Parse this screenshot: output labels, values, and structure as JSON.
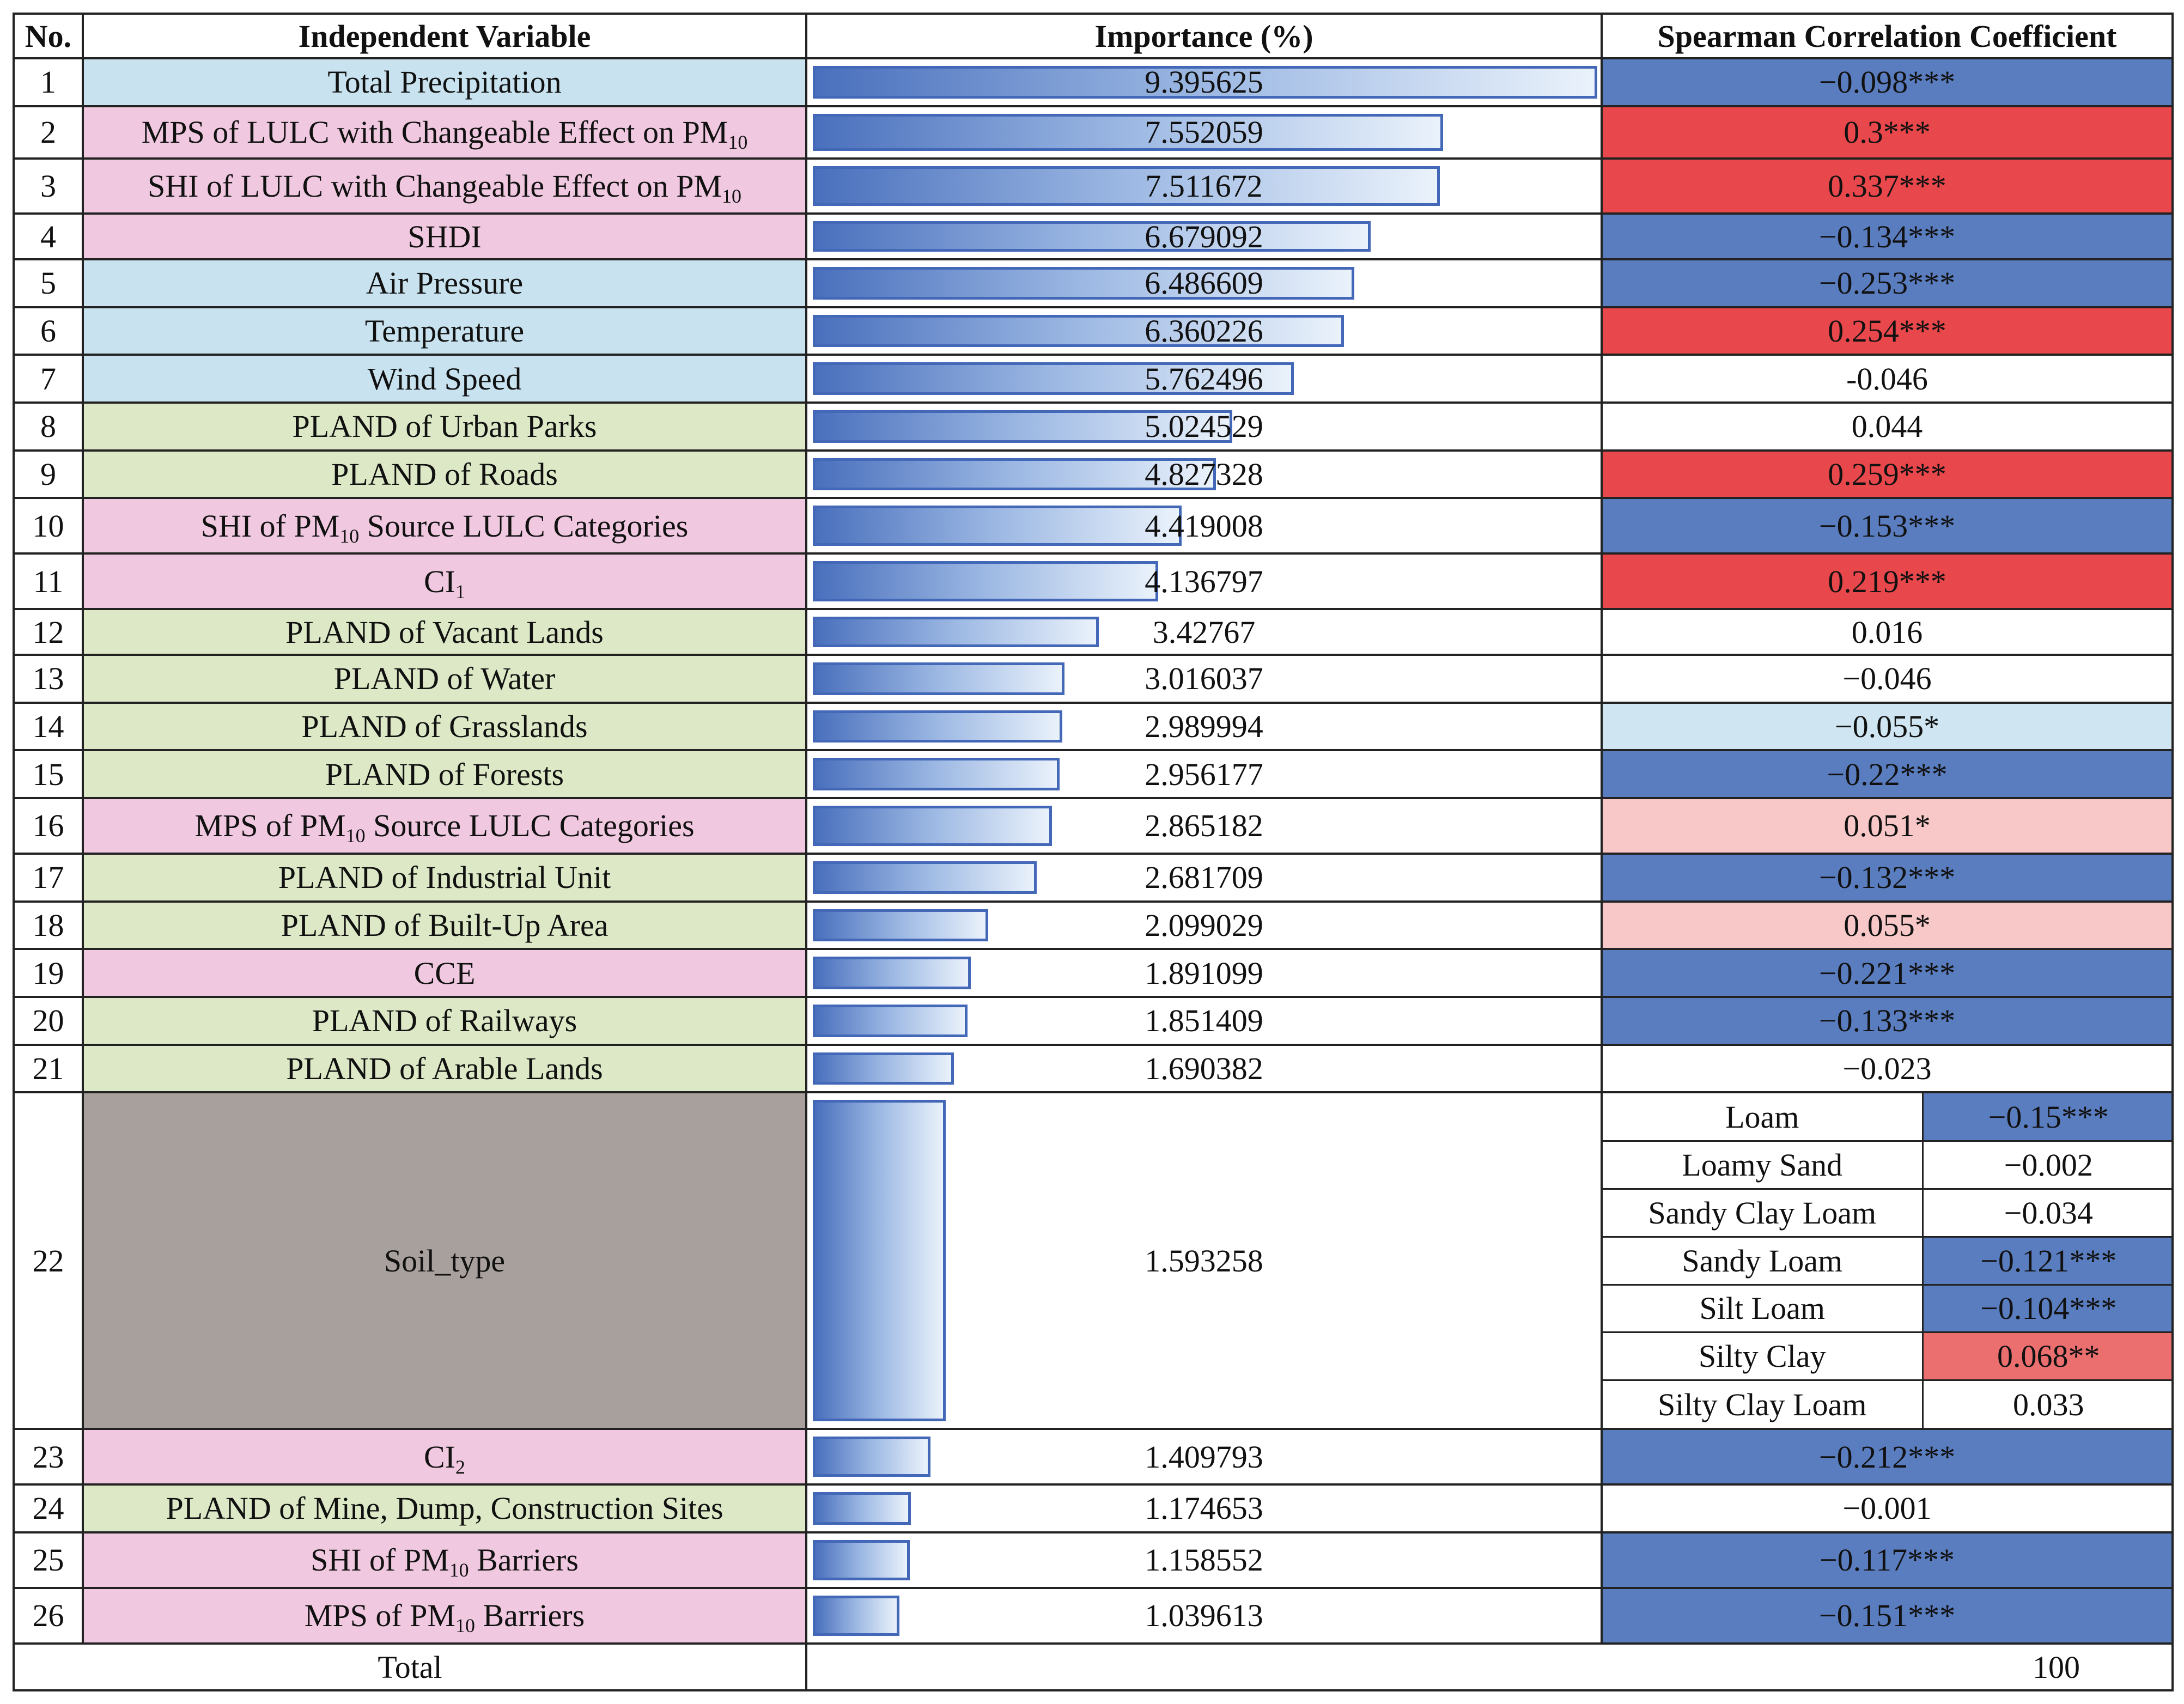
{
  "headers": {
    "no": "No.",
    "variable": "Independent Variable",
    "importance": "Importance (%)",
    "spearman": "Spearman Correlation Coefficient"
  },
  "colors": {
    "climate_bg": "#c8e3ef",
    "landscape_bg": "#f0c9e0",
    "landuse_bg": "#dde9c6",
    "soil_bg": "#a8a09c",
    "sig_negative": "#5a7dbf",
    "sig_positive": "#e8474b",
    "weak_negative": "#cfe6f2",
    "weak_positive": "#f8c8c8",
    "moderate_positive": "#ec6f70",
    "none": "#ffffff"
  },
  "rows": [
    {
      "no": "1",
      "pre": "Total Precipitation",
      "sub": "",
      "post": "",
      "group": "climate",
      "importance": "9.395625",
      "imp_value": 9.395625,
      "spearman": "−0.098***",
      "sp_color": "sig_negative"
    },
    {
      "no": "2",
      "pre": "MPS of LULC with Changeable Effect on PM",
      "sub": "10",
      "post": "",
      "group": "landscape",
      "importance": "7.552059",
      "imp_value": 7.552059,
      "spearman": "0.3***",
      "sp_color": "sig_positive"
    },
    {
      "no": "3",
      "pre": "SHI of LULC with Changeable Effect on PM",
      "sub": "10",
      "post": "",
      "group": "landscape",
      "importance": "7.511672",
      "imp_value": 7.511672,
      "spearman": "0.337***",
      "sp_color": "sig_positive"
    },
    {
      "no": "4",
      "pre": "SHDI",
      "sub": "",
      "post": "",
      "group": "landscape",
      "importance": "6.679092",
      "imp_value": 6.679092,
      "spearman": "−0.134***",
      "sp_color": "sig_negative"
    },
    {
      "no": "5",
      "pre": "Air Pressure",
      "sub": "",
      "post": "",
      "group": "climate",
      "importance": "6.486609",
      "imp_value": 6.486609,
      "spearman": "−0.253***",
      "sp_color": "sig_negative"
    },
    {
      "no": "6",
      "pre": "Temperature",
      "sub": "",
      "post": "",
      "group": "climate",
      "importance": "6.360226",
      "imp_value": 6.360226,
      "spearman": "0.254***",
      "sp_color": "sig_positive"
    },
    {
      "no": "7",
      "pre": "Wind Speed",
      "sub": "",
      "post": "",
      "group": "climate",
      "importance": "5.762496",
      "imp_value": 5.762496,
      "spearman": "-0.046",
      "sp_color": "none"
    },
    {
      "no": "8",
      "pre": "PLAND of Urban Parks",
      "sub": "",
      "post": "",
      "group": "landuse",
      "importance": "5.024529",
      "imp_value": 5.024529,
      "spearman": "0.044",
      "sp_color": "none"
    },
    {
      "no": "9",
      "pre": "PLAND of Roads",
      "sub": "",
      "post": "",
      "group": "landuse",
      "importance": "4.827328",
      "imp_value": 4.827328,
      "spearman": "0.259***",
      "sp_color": "sig_positive"
    },
    {
      "no": "10",
      "pre": "SHI of PM",
      "sub": "10",
      "post": " Source LULC Categories",
      "group": "landscape",
      "importance": "4.419008",
      "imp_value": 4.419008,
      "spearman": "−0.153***",
      "sp_color": "sig_negative"
    },
    {
      "no": "11",
      "pre": "CI",
      "sub": "1",
      "post": "",
      "group": "landscape",
      "importance": "4.136797",
      "imp_value": 4.136797,
      "spearman": "0.219***",
      "sp_color": "sig_positive"
    },
    {
      "no": "12",
      "pre": "PLAND of Vacant Lands",
      "sub": "",
      "post": "",
      "group": "landuse",
      "importance": "3.42767",
      "imp_value": 3.42767,
      "spearman": "0.016",
      "sp_color": "none"
    },
    {
      "no": "13",
      "pre": "PLAND of Water",
      "sub": "",
      "post": "",
      "group": "landuse",
      "importance": "3.016037",
      "imp_value": 3.016037,
      "spearman": "−0.046",
      "sp_color": "none"
    },
    {
      "no": "14",
      "pre": "PLAND of Grasslands",
      "sub": "",
      "post": "",
      "group": "landuse",
      "importance": "2.989994",
      "imp_value": 2.989994,
      "spearman": "−0.055*",
      "sp_color": "weak_negative"
    },
    {
      "no": "15",
      "pre": "PLAND of Forests",
      "sub": "",
      "post": "",
      "group": "landuse",
      "importance": "2.956177",
      "imp_value": 2.956177,
      "spearman": "−0.22***",
      "sp_color": "sig_negative"
    },
    {
      "no": "16",
      "pre": "MPS of PM",
      "sub": "10",
      "post": " Source LULC Categories",
      "group": "landscape",
      "importance": "2.865182",
      "imp_value": 2.865182,
      "spearman": "0.051*",
      "sp_color": "weak_positive"
    },
    {
      "no": "17",
      "pre": "PLAND of Industrial Unit",
      "sub": "",
      "post": "",
      "group": "landuse",
      "importance": "2.681709",
      "imp_value": 2.681709,
      "spearman": "−0.132***",
      "sp_color": "sig_negative"
    },
    {
      "no": "18",
      "pre": "PLAND of Built-Up Area",
      "sub": "",
      "post": "",
      "group": "landuse",
      "importance": "2.099029",
      "imp_value": 2.099029,
      "spearman": "0.055*",
      "sp_color": "weak_positive"
    },
    {
      "no": "19",
      "pre": "CCE",
      "sub": "",
      "post": "",
      "group": "landscape",
      "importance": "1.891099",
      "imp_value": 1.891099,
      "spearman": "−0.221***",
      "sp_color": "sig_negative"
    },
    {
      "no": "20",
      "pre": "PLAND of Railways",
      "sub": "",
      "post": "",
      "group": "landuse",
      "importance": "1.851409",
      "imp_value": 1.851409,
      "spearman": "−0.133***",
      "sp_color": "sig_negative"
    },
    {
      "no": "21",
      "pre": "PLAND of Arable Lands",
      "sub": "",
      "post": "",
      "group": "landuse",
      "importance": "1.690382",
      "imp_value": 1.690382,
      "spearman": "−0.023",
      "sp_color": "none"
    },
    {
      "no": "22",
      "pre": "Soil_type",
      "sub": "",
      "post": "",
      "group": "soil",
      "importance": "1.593258",
      "imp_value": 1.593258,
      "soil_types": [
        {
          "name": "Loam",
          "value": "−0.15***",
          "color": "sig_negative"
        },
        {
          "name": "Loamy Sand",
          "value": "−0.002",
          "color": "none"
        },
        {
          "name": "Sandy Clay Loam",
          "value": "−0.034",
          "color": "none"
        },
        {
          "name": "Sandy Loam",
          "value": "−0.121***",
          "color": "sig_negative"
        },
        {
          "name": "Silt Loam",
          "value": "−0.104***",
          "color": "sig_negative"
        },
        {
          "name": "Silty Clay",
          "value": "0.068**",
          "color": "moderate_positive"
        },
        {
          "name": "Silty Clay Loam",
          "value": "0.033",
          "color": "none"
        }
      ]
    },
    {
      "no": "23",
      "pre": "CI",
      "sub": "2",
      "post": "",
      "group": "landscape",
      "importance": "1.409793",
      "imp_value": 1.409793,
      "spearman": "−0.212***",
      "sp_color": "sig_negative"
    },
    {
      "no": "24",
      "pre": "PLAND of Mine, Dump, Construction Sites",
      "sub": "",
      "post": "",
      "group": "landuse",
      "importance": "1.174653",
      "imp_value": 1.174653,
      "spearman": "−0.001",
      "sp_color": "none"
    },
    {
      "no": "25",
      "pre": "SHI of PM",
      "sub": "10",
      "post": " Barriers",
      "group": "landscape",
      "importance": "1.158552",
      "imp_value": 1.158552,
      "spearman": "−0.117***",
      "sp_color": "sig_negative"
    },
    {
      "no": "26",
      "pre": "MPS of PM",
      "sub": "10",
      "post": " Barriers",
      "group": "landscape",
      "importance": "1.039613",
      "imp_value": 1.039613,
      "spearman": "−0.151***",
      "sp_color": "sig_negative"
    }
  ],
  "total": {
    "label": "Total",
    "value": "100"
  }
}
